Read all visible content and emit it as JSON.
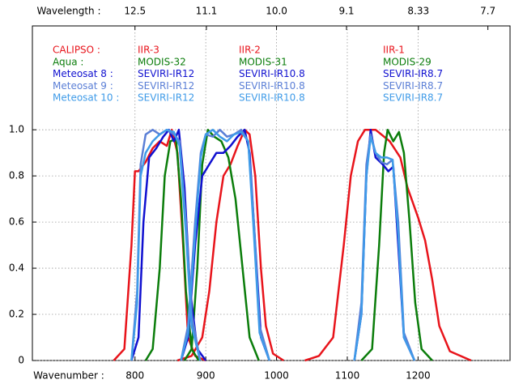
{
  "chart_data": {
    "type": "line",
    "xlabel": "Wavenumber :",
    "x2label": "Wavelength :",
    "xlim": [
      655,
      1330
    ],
    "xticks": [
      800,
      900,
      1000,
      1100,
      1200
    ],
    "x2ticks": [
      12.5,
      11.1,
      {
        "value": 10,
        "label": "10.0"
      },
      9.1,
      8.33,
      7.7
    ],
    "ylim": [
      0,
      1.45
    ],
    "yticks": [
      0,
      0.2,
      0.4,
      0.6,
      0.8,
      {
        "value": 1,
        "label": "1.0"
      }
    ],
    "grid": true,
    "series": [
      {
        "name": "CALIPSO :",
        "color": "#e8141b",
        "bands": [
          {
            "label": "IIR-3",
            "x": [
              770,
              785,
              795,
              800,
              805,
              815,
              825,
              835,
              845,
              852,
              860,
              868,
              875,
              885,
              900
            ],
            "values": [
              0,
              0.05,
              0.5,
              0.82,
              0.82,
              0.86,
              0.92,
              0.95,
              0.93,
              1.0,
              0.9,
              0.5,
              0.1,
              0.02,
              0
            ]
          },
          {
            "label": "IIR-2",
            "x": [
              860,
              880,
              895,
              905,
              915,
              925,
              935,
              945,
              955,
              962,
              970,
              978,
              985,
              995,
              1010
            ],
            "values": [
              0,
              0.02,
              0.1,
              0.3,
              0.6,
              0.8,
              0.85,
              0.93,
              1.0,
              0.98,
              0.8,
              0.4,
              0.15,
              0.03,
              0
            ]
          },
          {
            "label": "IIR-1",
            "x": [
              1040,
              1060,
              1080,
              1095,
              1105,
              1115,
              1125,
              1140,
              1160,
              1175,
              1185,
              1200,
              1210,
              1220,
              1230,
              1245,
              1275
            ],
            "values": [
              0,
              0.02,
              0.1,
              0.5,
              0.8,
              0.95,
              1.0,
              1.0,
              0.95,
              0.88,
              0.75,
              0.62,
              0.52,
              0.35,
              0.15,
              0.04,
              0
            ]
          }
        ]
      },
      {
        "name": "Aqua :",
        "color": "#0b7d0b",
        "bands": [
          {
            "label": "MODIS-32",
            "x": [
              815,
              825,
              835,
              842,
              850,
              858,
              865,
              872,
              880,
              890
            ],
            "values": [
              0,
              0.05,
              0.4,
              0.8,
              0.95,
              0.96,
              0.7,
              0.3,
              0.05,
              0
            ]
          },
          {
            "label": "MODIS-31",
            "x": [
              870,
              880,
              888,
              895,
              903,
              912,
              922,
              932,
              942,
              952,
              962,
              975
            ],
            "values": [
              0,
              0.05,
              0.4,
              0.85,
              1.0,
              0.97,
              0.95,
              0.88,
              0.7,
              0.4,
              0.1,
              0
            ]
          },
          {
            "label": "MODIS-29",
            "x": [
              1120,
              1135,
              1145,
              1152,
              1157,
              1165,
              1173,
              1180,
              1188,
              1196,
              1205,
              1220
            ],
            "values": [
              0,
              0.05,
              0.5,
              0.9,
              1.0,
              0.95,
              0.99,
              0.9,
              0.6,
              0.25,
              0.05,
              0
            ]
          }
        ]
      },
      {
        "name": "Meteosat 8 :",
        "color": "#1010d0",
        "bands": [
          {
            "label": "SEVIRI-IR12",
            "x": [
              795,
              805,
              812,
              820,
              830,
              840,
              848,
              855,
              862,
              870,
              878,
              888,
              900
            ],
            "values": [
              0,
              0.1,
              0.6,
              0.88,
              0.92,
              0.97,
              1.0,
              0.95,
              1.0,
              0.75,
              0.3,
              0.05,
              0
            ]
          },
          {
            "label": "SEVIRI-IR10.8",
            "x": [
              865,
              875,
              885,
              895,
              905,
              915,
              925,
              935,
              945,
              955,
              962,
              970,
              978,
              990
            ],
            "values": [
              0,
              0.1,
              0.5,
              0.8,
              0.85,
              0.9,
              0.9,
              0.93,
              0.97,
              1.0,
              0.9,
              0.5,
              0.1,
              0
            ]
          },
          {
            "label": "SEVIRI-IR8.7",
            "x": [
              1110,
              1120,
              1127,
              1133,
              1140,
              1150,
              1158,
              1165,
              1172,
              1180,
              1195
            ],
            "values": [
              0,
              0.2,
              0.8,
              1.0,
              0.88,
              0.85,
              0.82,
              0.84,
              0.5,
              0.1,
              0
            ]
          }
        ]
      },
      {
        "name": "Meteosat 9 :",
        "color": "#5b7fd6",
        "bands": [
          {
            "label": "SEVIRI-IR12",
            "x": [
              795,
              803,
              808,
              815,
              825,
              835,
              845,
              855,
              863,
              872,
              880,
              892
            ],
            "values": [
              0,
              0.3,
              0.85,
              0.98,
              1.0,
              0.98,
              1.0,
              0.98,
              0.95,
              0.6,
              0.2,
              0
            ]
          },
          {
            "label": "SEVIRI-IR10.8",
            "x": [
              865,
              875,
              885,
              893,
              900,
              910,
              920,
              930,
              940,
              950,
              960,
              968,
              976,
              990
            ],
            "values": [
              0,
              0.15,
              0.6,
              0.9,
              0.98,
              0.97,
              1.0,
              0.97,
              0.98,
              1.0,
              0.95,
              0.6,
              0.15,
              0
            ]
          },
          {
            "label": "SEVIRI-IR8.7",
            "x": [
              1110,
              1120,
              1127,
              1133,
              1140,
              1148,
              1156,
              1164,
              1172,
              1180,
              1195
            ],
            "values": [
              0,
              0.25,
              0.85,
              0.98,
              0.9,
              0.86,
              0.85,
              0.87,
              0.6,
              0.12,
              0
            ]
          }
        ]
      },
      {
        "name": "Meteosat 10 :",
        "color": "#3f9be8",
        "bands": [
          {
            "label": "SEVIRI-IR12",
            "x": [
              795,
              803,
              808,
              815,
              825,
              835,
              845,
              855,
              863,
              872,
              880,
              892
            ],
            "values": [
              0,
              0.25,
              0.8,
              0.9,
              0.95,
              0.98,
              1.0,
              0.99,
              0.93,
              0.55,
              0.15,
              0
            ]
          },
          {
            "label": "SEVIRI-IR10.8",
            "x": [
              865,
              875,
              885,
              893,
              900,
              910,
              920,
              930,
              940,
              950,
              960,
              968,
              976,
              990
            ],
            "values": [
              0,
              0.12,
              0.55,
              0.88,
              0.98,
              1.0,
              0.97,
              0.95,
              0.98,
              0.99,
              0.95,
              0.55,
              0.12,
              0
            ]
          },
          {
            "label": "SEVIRI-IR8.7",
            "x": [
              1110,
              1120,
              1127,
              1133,
              1140,
              1148,
              1156,
              1164,
              1172,
              1180,
              1195
            ],
            "values": [
              0,
              0.2,
              0.8,
              0.97,
              0.9,
              0.88,
              0.88,
              0.87,
              0.55,
              0.1,
              0
            ]
          }
        ]
      }
    ]
  }
}
